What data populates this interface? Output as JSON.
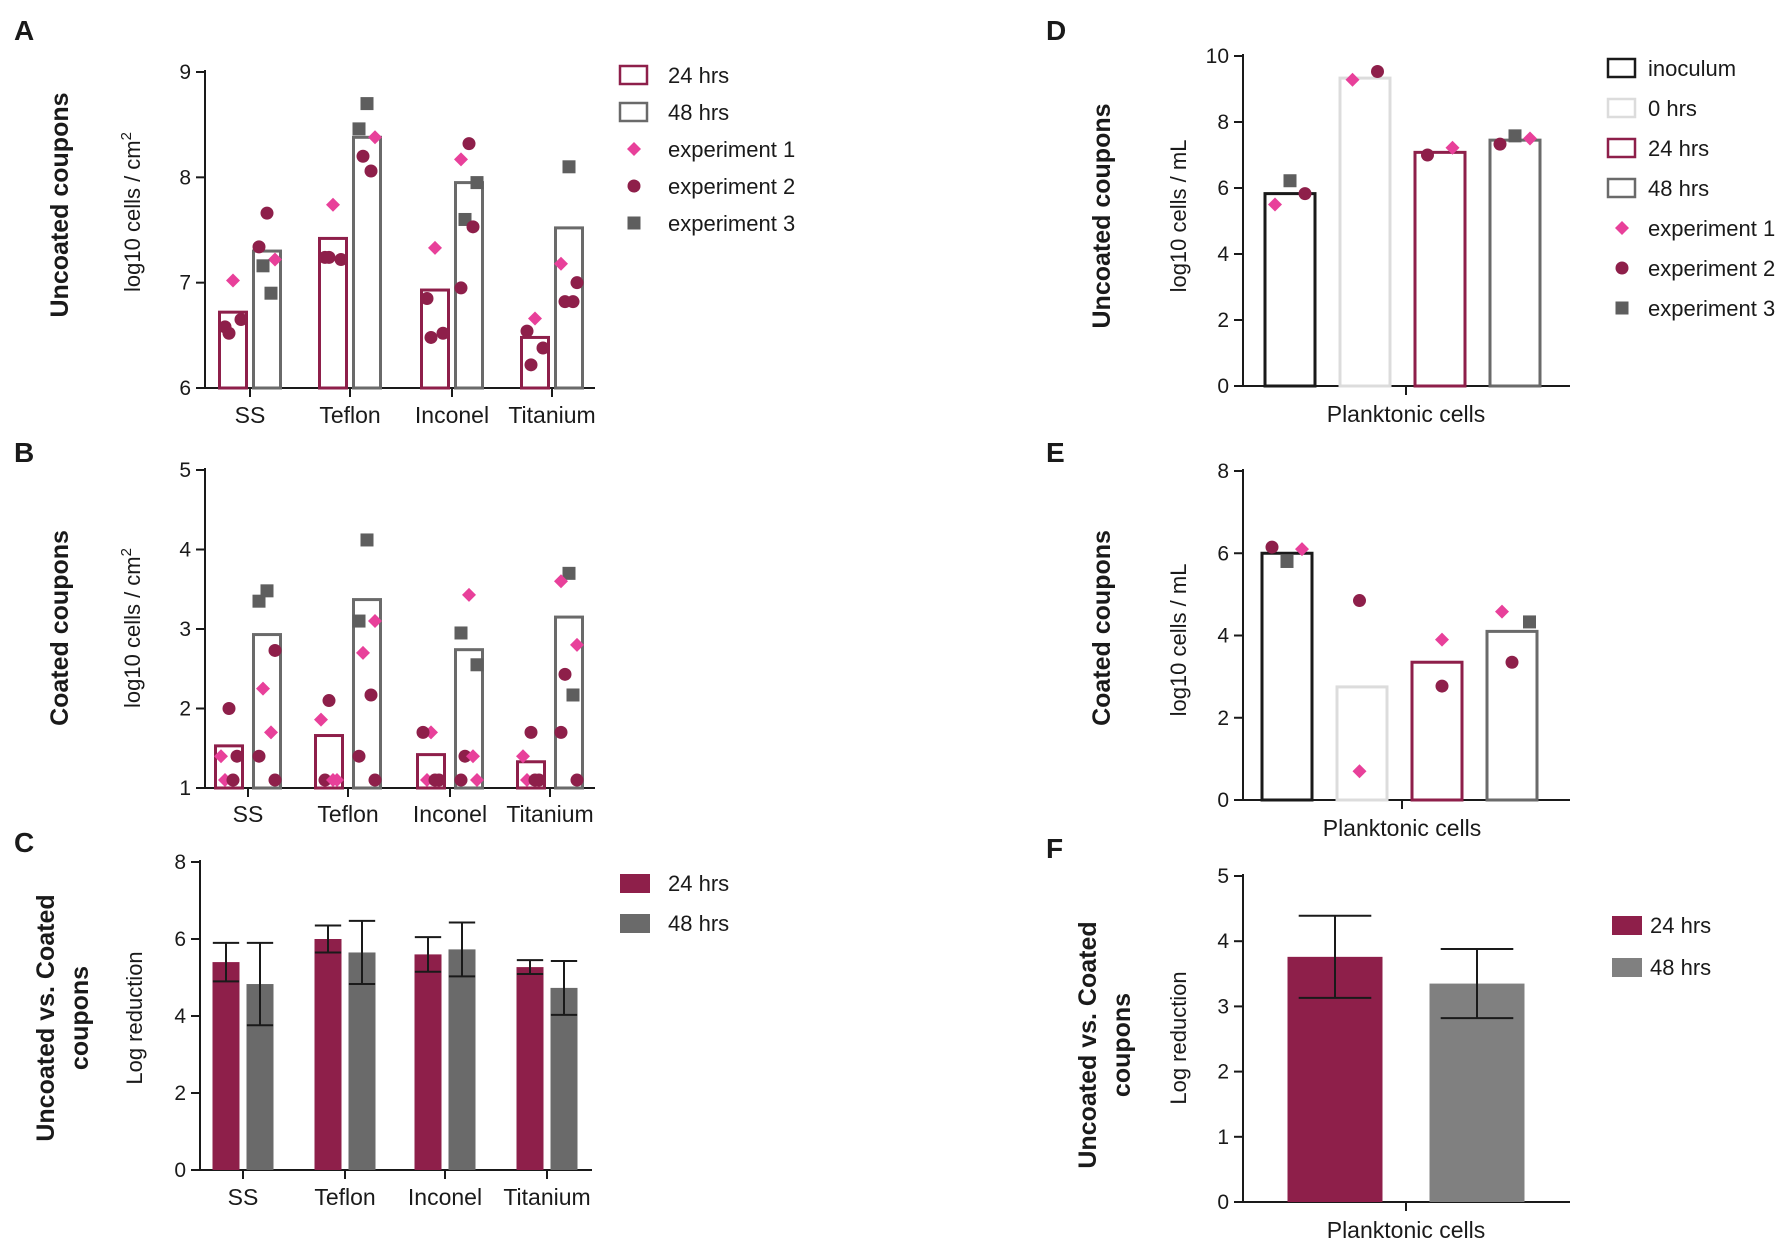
{
  "colors": {
    "h24": "#8e1f4a",
    "h48": "#6a6a6a",
    "h48_light": "#808080",
    "exp1": "#e8409a",
    "exp2": "#8e1f4a",
    "exp3": "#5e5e5e",
    "inoculum": "#1a1a1a",
    "h0": "#dcdcdc"
  },
  "chart_data": [
    {
      "id": "A",
      "letter": "A",
      "type": "bar",
      "row_label": [
        "Uncoated coupons"
      ],
      "ylabel": "log10 cells / cm",
      "ylabel_sup": "2",
      "ylim": [
        6,
        9
      ],
      "yticks": [
        6,
        7,
        8,
        9
      ],
      "categories": [
        "SS",
        "Teflon",
        "Inconel",
        "Titanium"
      ],
      "bar_style": "outline",
      "series": [
        {
          "name": "24 hrs",
          "color_key": "h24",
          "values": [
            6.72,
            7.42,
            6.93,
            6.48
          ]
        },
        {
          "name": "48 hrs",
          "color_key": "h48",
          "values": [
            7.3,
            8.38,
            7.95,
            7.52
          ]
        }
      ],
      "points": [
        {
          "cat": 0,
          "series": 0,
          "exp": 1,
          "y": 7.02
        },
        {
          "cat": 0,
          "series": 0,
          "exp": 2,
          "y": 6.58
        },
        {
          "cat": 0,
          "series": 0,
          "exp": 2,
          "y": 6.65
        },
        {
          "cat": 0,
          "series": 0,
          "exp": 2,
          "y": 6.52
        },
        {
          "cat": 0,
          "series": 1,
          "exp": 2,
          "y": 7.66
        },
        {
          "cat": 0,
          "series": 1,
          "exp": 2,
          "y": 7.34
        },
        {
          "cat": 0,
          "series": 1,
          "exp": 1,
          "y": 7.22
        },
        {
          "cat": 0,
          "series": 1,
          "exp": 3,
          "y": 7.16
        },
        {
          "cat": 0,
          "series": 1,
          "exp": 3,
          "y": 6.9
        },
        {
          "cat": 1,
          "series": 0,
          "exp": 1,
          "y": 7.74
        },
        {
          "cat": 1,
          "series": 0,
          "exp": 2,
          "y": 7.24
        },
        {
          "cat": 1,
          "series": 0,
          "exp": 2,
          "y": 7.22
        },
        {
          "cat": 1,
          "series": 0,
          "exp": 2,
          "y": 7.24
        },
        {
          "cat": 1,
          "series": 1,
          "exp": 3,
          "y": 8.7
        },
        {
          "cat": 1,
          "series": 1,
          "exp": 3,
          "y": 8.46
        },
        {
          "cat": 1,
          "series": 1,
          "exp": 1,
          "y": 8.38
        },
        {
          "cat": 1,
          "series": 1,
          "exp": 2,
          "y": 8.2
        },
        {
          "cat": 1,
          "series": 1,
          "exp": 2,
          "y": 8.06
        },
        {
          "cat": 2,
          "series": 0,
          "exp": 1,
          "y": 7.33
        },
        {
          "cat": 2,
          "series": 0,
          "exp": 2,
          "y": 6.85
        },
        {
          "cat": 2,
          "series": 0,
          "exp": 2,
          "y": 6.52
        },
        {
          "cat": 2,
          "series": 0,
          "exp": 2,
          "y": 6.48
        },
        {
          "cat": 2,
          "series": 1,
          "exp": 2,
          "y": 8.32
        },
        {
          "cat": 2,
          "series": 1,
          "exp": 1,
          "y": 8.17
        },
        {
          "cat": 2,
          "series": 1,
          "exp": 3,
          "y": 7.95
        },
        {
          "cat": 2,
          "series": 1,
          "exp": 3,
          "y": 7.6
        },
        {
          "cat": 2,
          "series": 1,
          "exp": 2,
          "y": 7.53
        },
        {
          "cat": 2,
          "series": 1,
          "exp": 2,
          "y": 6.95
        },
        {
          "cat": 3,
          "series": 0,
          "exp": 1,
          "y": 6.66
        },
        {
          "cat": 3,
          "series": 0,
          "exp": 2,
          "y": 6.54
        },
        {
          "cat": 3,
          "series": 0,
          "exp": 2,
          "y": 6.38
        },
        {
          "cat": 3,
          "series": 0,
          "exp": 2,
          "y": 6.22
        },
        {
          "cat": 3,
          "series": 1,
          "exp": 3,
          "y": 8.1
        },
        {
          "cat": 3,
          "series": 1,
          "exp": 1,
          "y": 7.18
        },
        {
          "cat": 3,
          "series": 1,
          "exp": 2,
          "y": 7.0
        },
        {
          "cat": 3,
          "series": 1,
          "exp": 2,
          "y": 6.82
        },
        {
          "cat": 3,
          "series": 1,
          "exp": 2,
          "y": 6.82
        }
      ],
      "legend": [
        {
          "label": "24 hrs",
          "kind": "box",
          "color_key": "h24"
        },
        {
          "label": "48 hrs",
          "kind": "box",
          "color_key": "h48"
        },
        {
          "label": "experiment 1",
          "kind": "diamond",
          "color_key": "exp1"
        },
        {
          "label": "experiment 2",
          "kind": "circle",
          "color_key": "exp2"
        },
        {
          "label": "experiment 3",
          "kind": "square",
          "color_key": "exp3"
        }
      ]
    },
    {
      "id": "B",
      "letter": "B",
      "type": "bar",
      "row_label": [
        "Coated coupons"
      ],
      "ylabel": "log10 cells / cm",
      "ylabel_sup": "2",
      "ylim": [
        1,
        5
      ],
      "yticks": [
        1,
        2,
        3,
        4,
        5
      ],
      "categories": [
        "SS",
        "Teflon",
        "Inconel",
        "Titanium"
      ],
      "bar_style": "outline",
      "series": [
        {
          "name": "24 hrs",
          "color_key": "h24",
          "values": [
            1.53,
            1.66,
            1.42,
            1.33
          ]
        },
        {
          "name": "48 hrs",
          "color_key": "h48",
          "values": [
            2.93,
            3.37,
            2.74,
            3.15
          ]
        }
      ],
      "points": [
        {
          "cat": 0,
          "series": 0,
          "exp": 2,
          "y": 2.0
        },
        {
          "cat": 0,
          "series": 0,
          "exp": 1,
          "y": 1.4
        },
        {
          "cat": 0,
          "series": 0,
          "exp": 2,
          "y": 1.4
        },
        {
          "cat": 0,
          "series": 0,
          "exp": 1,
          "y": 1.1
        },
        {
          "cat": 0,
          "series": 0,
          "exp": 2,
          "y": 1.1
        },
        {
          "cat": 0,
          "series": 1,
          "exp": 3,
          "y": 3.48
        },
        {
          "cat": 0,
          "series": 1,
          "exp": 3,
          "y": 3.35
        },
        {
          "cat": 0,
          "series": 1,
          "exp": 2,
          "y": 2.73
        },
        {
          "cat": 0,
          "series": 1,
          "exp": 1,
          "y": 2.25
        },
        {
          "cat": 0,
          "series": 1,
          "exp": 1,
          "y": 1.7
        },
        {
          "cat": 0,
          "series": 1,
          "exp": 2,
          "y": 1.4
        },
        {
          "cat": 0,
          "series": 1,
          "exp": 2,
          "y": 1.1
        },
        {
          "cat": 1,
          "series": 0,
          "exp": 2,
          "y": 2.1
        },
        {
          "cat": 1,
          "series": 0,
          "exp": 1,
          "y": 1.86
        },
        {
          "cat": 1,
          "series": 0,
          "exp": 1,
          "y": 1.1
        },
        {
          "cat": 1,
          "series": 0,
          "exp": 2,
          "y": 1.1
        },
        {
          "cat": 1,
          "series": 0,
          "exp": 1,
          "y": 1.1
        },
        {
          "cat": 1,
          "series": 1,
          "exp": 3,
          "y": 4.12
        },
        {
          "cat": 1,
          "series": 1,
          "exp": 3,
          "y": 3.1
        },
        {
          "cat": 1,
          "series": 1,
          "exp": 1,
          "y": 3.1
        },
        {
          "cat": 1,
          "series": 1,
          "exp": 1,
          "y": 2.7
        },
        {
          "cat": 1,
          "series": 1,
          "exp": 2,
          "y": 2.17
        },
        {
          "cat": 1,
          "series": 1,
          "exp": 2,
          "y": 1.4
        },
        {
          "cat": 1,
          "series": 1,
          "exp": 2,
          "y": 1.1
        },
        {
          "cat": 2,
          "series": 0,
          "exp": 1,
          "y": 1.7
        },
        {
          "cat": 2,
          "series": 0,
          "exp": 2,
          "y": 1.7
        },
        {
          "cat": 2,
          "series": 0,
          "exp": 2,
          "y": 1.1
        },
        {
          "cat": 2,
          "series": 0,
          "exp": 1,
          "y": 1.1
        },
        {
          "cat": 2,
          "series": 0,
          "exp": 2,
          "y": 1.1
        },
        {
          "cat": 2,
          "series": 1,
          "exp": 1,
          "y": 3.43
        },
        {
          "cat": 2,
          "series": 1,
          "exp": 3,
          "y": 2.95
        },
        {
          "cat": 2,
          "series": 1,
          "exp": 3,
          "y": 2.55
        },
        {
          "cat": 2,
          "series": 1,
          "exp": 2,
          "y": 1.4
        },
        {
          "cat": 2,
          "series": 1,
          "exp": 1,
          "y": 1.4
        },
        {
          "cat": 2,
          "series": 1,
          "exp": 2,
          "y": 1.1
        },
        {
          "cat": 2,
          "series": 1,
          "exp": 1,
          "y": 1.1
        },
        {
          "cat": 3,
          "series": 0,
          "exp": 2,
          "y": 1.7
        },
        {
          "cat": 3,
          "series": 0,
          "exp": 1,
          "y": 1.4
        },
        {
          "cat": 3,
          "series": 0,
          "exp": 2,
          "y": 1.1
        },
        {
          "cat": 3,
          "series": 0,
          "exp": 1,
          "y": 1.1
        },
        {
          "cat": 3,
          "series": 0,
          "exp": 2,
          "y": 1.1
        },
        {
          "cat": 3,
          "series": 1,
          "exp": 3,
          "y": 3.7
        },
        {
          "cat": 3,
          "series": 1,
          "exp": 1,
          "y": 3.6
        },
        {
          "cat": 3,
          "series": 1,
          "exp": 1,
          "y": 2.8
        },
        {
          "cat": 3,
          "series": 1,
          "exp": 2,
          "y": 2.43
        },
        {
          "cat": 3,
          "series": 1,
          "exp": 3,
          "y": 2.17
        },
        {
          "cat": 3,
          "series": 1,
          "exp": 2,
          "y": 1.7
        },
        {
          "cat": 3,
          "series": 1,
          "exp": 2,
          "y": 1.1
        }
      ],
      "legend": []
    },
    {
      "id": "C",
      "letter": "C",
      "type": "bar",
      "row_label": [
        "Uncoated vs. Coated",
        "coupons"
      ],
      "ylabel": "Log reduction",
      "ylabel_sup": "",
      "ylim": [
        0,
        8
      ],
      "yticks": [
        0,
        2,
        4,
        6,
        8
      ],
      "categories": [
        "SS",
        "Teflon",
        "Inconel",
        "Titanium"
      ],
      "bar_style": "filled",
      "series": [
        {
          "name": "24 hrs",
          "color_key": "h24",
          "values": [
            5.4,
            6.0,
            5.6,
            5.27
          ],
          "err": [
            0.5,
            0.35,
            0.45,
            0.18
          ]
        },
        {
          "name": "48 hrs",
          "color_key": "h48",
          "values": [
            4.83,
            5.65,
            5.73,
            4.73
          ],
          "err": [
            1.07,
            0.82,
            0.7,
            0.7
          ]
        }
      ],
      "points": [],
      "legend": [
        {
          "label": "24 hrs",
          "kind": "filled",
          "color_key": "h24"
        },
        {
          "label": "48 hrs",
          "kind": "filled",
          "color_key": "h48"
        }
      ]
    },
    {
      "id": "D",
      "letter": "D",
      "type": "bar",
      "row_label": [
        "Uncoated coupons"
      ],
      "ylabel": "log10 cells / mL",
      "ylabel_sup": "",
      "ylim": [
        0,
        10
      ],
      "yticks": [
        0,
        2,
        4,
        6,
        8,
        10
      ],
      "categories": [
        "Planktonic cells"
      ],
      "bar_style": "outline",
      "series": [
        {
          "name": "inoculum",
          "color_key": "inoculum",
          "values": [
            5.83
          ]
        },
        {
          "name": "0 hrs",
          "color_key": "h0",
          "values": [
            9.33
          ]
        },
        {
          "name": "24 hrs",
          "color_key": "h24",
          "values": [
            7.08
          ]
        },
        {
          "name": "48 hrs",
          "color_key": "h48",
          "values": [
            7.45
          ]
        }
      ],
      "points": [
        {
          "cat": 0,
          "series": 0,
          "exp": 1,
          "y": 5.5,
          "dx": -0.3
        },
        {
          "cat": 0,
          "series": 0,
          "exp": 3,
          "y": 6.22,
          "dx": 0.0
        },
        {
          "cat": 0,
          "series": 0,
          "exp": 2,
          "y": 5.83,
          "dx": 0.3
        },
        {
          "cat": 0,
          "series": 1,
          "exp": 1,
          "y": 9.28,
          "dx": -0.25
        },
        {
          "cat": 0,
          "series": 1,
          "exp": 2,
          "y": 9.53,
          "dx": 0.25
        },
        {
          "cat": 0,
          "series": 2,
          "exp": 2,
          "y": 7.0,
          "dx": -0.25
        },
        {
          "cat": 0,
          "series": 2,
          "exp": 1,
          "y": 7.22,
          "dx": 0.25
        },
        {
          "cat": 0,
          "series": 3,
          "exp": 2,
          "y": 7.33,
          "dx": -0.3
        },
        {
          "cat": 0,
          "series": 3,
          "exp": 3,
          "y": 7.58,
          "dx": 0.0
        },
        {
          "cat": 0,
          "series": 3,
          "exp": 1,
          "y": 7.5,
          "dx": 0.3
        }
      ],
      "legend": [
        {
          "label": "inoculum",
          "kind": "box",
          "color_key": "inoculum"
        },
        {
          "label": "0 hrs",
          "kind": "box",
          "color_key": "h0"
        },
        {
          "label": "24 hrs",
          "kind": "box",
          "color_key": "h24"
        },
        {
          "label": "48 hrs",
          "kind": "box",
          "color_key": "h48"
        },
        {
          "label": "experiment 1",
          "kind": "diamond",
          "color_key": "exp1"
        },
        {
          "label": "experiment 2",
          "kind": "circle",
          "color_key": "exp2"
        },
        {
          "label": "experiment 3",
          "kind": "square",
          "color_key": "exp3"
        }
      ]
    },
    {
      "id": "E",
      "letter": "E",
      "type": "bar",
      "row_label": [
        "Coated coupons"
      ],
      "ylabel": "log10 cells / mL",
      "ylabel_sup": "",
      "ylim": [
        0,
        8
      ],
      "yticks": [
        0,
        2,
        4,
        6,
        8
      ],
      "categories": [
        "Planktonic cells"
      ],
      "bar_style": "outline",
      "series": [
        {
          "name": "inoculum",
          "color_key": "inoculum",
          "values": [
            6.0
          ]
        },
        {
          "name": "0 hrs",
          "color_key": "h0",
          "values": [
            2.75
          ]
        },
        {
          "name": "24 hrs",
          "color_key": "h24",
          "values": [
            3.35
          ]
        },
        {
          "name": "48 hrs",
          "color_key": "h48",
          "values": [
            4.1
          ]
        }
      ],
      "points": [
        {
          "cat": 0,
          "series": 0,
          "exp": 2,
          "y": 6.15,
          "dx": -0.3
        },
        {
          "cat": 0,
          "series": 0,
          "exp": 3,
          "y": 5.8,
          "dx": 0.0
        },
        {
          "cat": 0,
          "series": 0,
          "exp": 1,
          "y": 6.1,
          "dx": 0.3
        },
        {
          "cat": 0,
          "series": 1,
          "exp": 2,
          "y": 4.85,
          "dx": -0.05
        },
        {
          "cat": 0,
          "series": 1,
          "exp": 1,
          "y": 0.7,
          "dx": -0.05
        },
        {
          "cat": 0,
          "series": 2,
          "exp": 1,
          "y": 3.9,
          "dx": 0.1
        },
        {
          "cat": 0,
          "series": 2,
          "exp": 2,
          "y": 2.77,
          "dx": 0.1
        },
        {
          "cat": 0,
          "series": 3,
          "exp": 1,
          "y": 4.58,
          "dx": -0.2
        },
        {
          "cat": 0,
          "series": 3,
          "exp": 3,
          "y": 4.33,
          "dx": 0.35
        },
        {
          "cat": 0,
          "series": 3,
          "exp": 2,
          "y": 3.35,
          "dx": 0.0
        }
      ],
      "legend": []
    },
    {
      "id": "F",
      "letter": "F",
      "type": "bar",
      "row_label": [
        "Uncoated vs. Coated",
        "coupons"
      ],
      "ylabel": "Log reduction",
      "ylabel_sup": "",
      "ylim": [
        0,
        5
      ],
      "yticks": [
        0,
        1,
        2,
        3,
        4,
        5
      ],
      "categories": [
        "Planktonic cells"
      ],
      "bar_style": "filled",
      "series": [
        {
          "name": "24 hrs",
          "color_key": "h24",
          "values": [
            3.76
          ],
          "err": [
            0.63
          ]
        },
        {
          "name": "48 hrs",
          "color_key": "h48_light",
          "values": [
            3.35
          ],
          "err": [
            0.53
          ]
        }
      ],
      "points": [],
      "legend": [
        {
          "label": "24 hrs",
          "kind": "filled",
          "color_key": "h24"
        },
        {
          "label": "48 hrs",
          "kind": "filled",
          "color_key": "h48_light"
        }
      ]
    }
  ]
}
